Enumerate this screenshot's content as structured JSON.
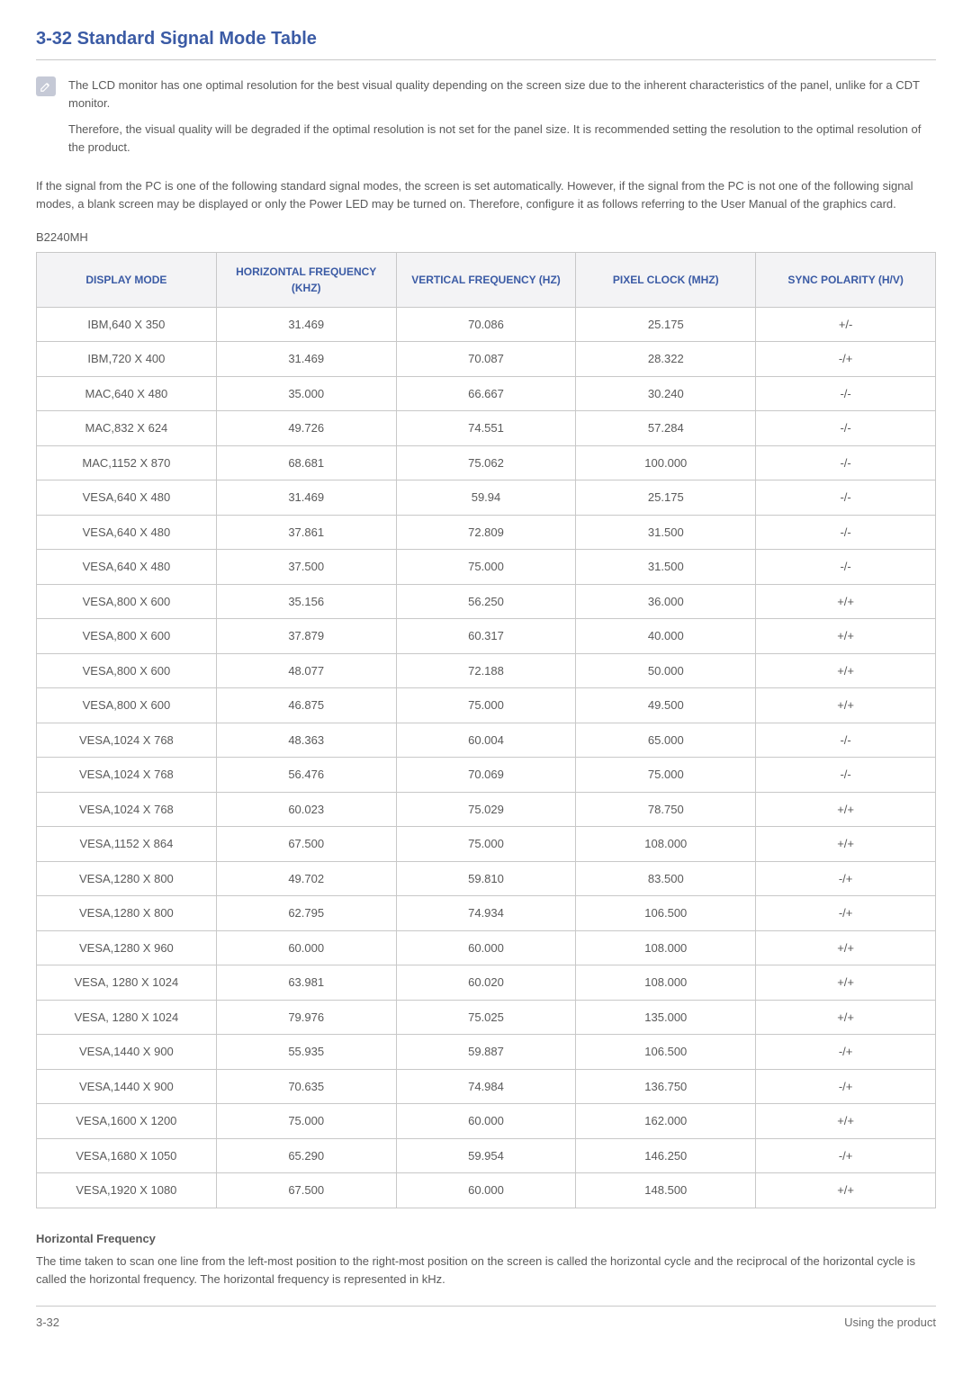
{
  "heading": "3-32  Standard Signal Mode Table",
  "note": {
    "p1": "The LCD monitor has one optimal resolution for the best visual quality depending on the screen size due to the inherent characteristics of the panel, unlike for a CDT monitor.",
    "p2": "Therefore, the visual quality will be degraded if the optimal resolution is not set for the panel size. It is recommended setting the resolution to the optimal resolution of the product."
  },
  "body_para": "If the signal from the PC is one of the following standard signal modes, the screen is set automatically. However, if the signal from the PC is not one of the following signal modes, a blank screen may be displayed or only the Power LED may be turned on. Therefore, configure it as follows referring to the User Manual of the graphics card.",
  "model": "B2240MH",
  "table": {
    "columns": [
      "DISPLAY MODE",
      "HORIZONTAL FREQUENCY (KHZ)",
      "VERTICAL FREQUENCY (HZ)",
      "PIXEL CLOCK (MHZ)",
      "SYNC POLARITY (H/V)"
    ],
    "rows": [
      [
        "IBM,640 X 350",
        "31.469",
        "70.086",
        "25.175",
        "+/-"
      ],
      [
        "IBM,720 X 400",
        "31.469",
        "70.087",
        "28.322",
        "-/+"
      ],
      [
        "MAC,640 X 480",
        "35.000",
        "66.667",
        "30.240",
        "-/-"
      ],
      [
        "MAC,832 X 624",
        "49.726",
        "74.551",
        "57.284",
        "-/-"
      ],
      [
        "MAC,1152 X 870",
        "68.681",
        "75.062",
        "100.000",
        "-/-"
      ],
      [
        "VESA,640 X 480",
        "31.469",
        "59.94",
        "25.175",
        "-/-"
      ],
      [
        "VESA,640 X 480",
        "37.861",
        "72.809",
        "31.500",
        "-/-"
      ],
      [
        "VESA,640 X 480",
        "37.500",
        "75.000",
        "31.500",
        "-/-"
      ],
      [
        "VESA,800 X 600",
        "35.156",
        "56.250",
        "36.000",
        "+/+"
      ],
      [
        "VESA,800 X 600",
        "37.879",
        "60.317",
        "40.000",
        "+/+"
      ],
      [
        "VESA,800 X 600",
        "48.077",
        "72.188",
        "50.000",
        "+/+"
      ],
      [
        "VESA,800 X 600",
        "46.875",
        "75.000",
        "49.500",
        "+/+"
      ],
      [
        "VESA,1024 X 768",
        "48.363",
        "60.004",
        "65.000",
        "-/-"
      ],
      [
        "VESA,1024 X 768",
        "56.476",
        "70.069",
        "75.000",
        "-/-"
      ],
      [
        "VESA,1024 X 768",
        "60.023",
        "75.029",
        "78.750",
        "+/+"
      ],
      [
        "VESA,1152 X 864",
        "67.500",
        "75.000",
        "108.000",
        "+/+"
      ],
      [
        "VESA,1280 X 800",
        "49.702",
        "59.810",
        "83.500",
        "-/+"
      ],
      [
        "VESA,1280 X 800",
        "62.795",
        "74.934",
        "106.500",
        "-/+"
      ],
      [
        "VESA,1280 X 960",
        "60.000",
        "60.000",
        "108.000",
        "+/+"
      ],
      [
        "VESA, 1280 X 1024",
        "63.981",
        "60.020",
        "108.000",
        "+/+"
      ],
      [
        "VESA, 1280 X 1024",
        "79.976",
        "75.025",
        "135.000",
        "+/+"
      ],
      [
        "VESA,1440 X 900",
        "55.935",
        "59.887",
        "106.500",
        "-/+"
      ],
      [
        "VESA,1440 X 900",
        "70.635",
        "74.984",
        "136.750",
        "-/+"
      ],
      [
        "VESA,1600 X 1200",
        "75.000",
        "60.000",
        "162.000",
        "+/+"
      ],
      [
        "VESA,1680 X 1050",
        "65.290",
        "59.954",
        "146.250",
        "-/+"
      ],
      [
        "VESA,1920 X 1080",
        "67.500",
        "60.000",
        "148.500",
        "+/+"
      ]
    ]
  },
  "horiz_heading": "Horizontal Frequency",
  "horiz_text": "The time taken to scan one line from the left-most position to the right-most position on the screen is called the horizontal cycle and the reciprocal of the horizontal cycle is called the horizontal frequency. The horizontal frequency is represented in kHz.",
  "footer": {
    "left": "3-32",
    "right": "Using the product"
  },
  "colors": {
    "accent": "#3b5ba5",
    "rule": "#c8c8c8",
    "header_bg": "#f3f3f5",
    "text": "#5a5a5a",
    "icon_bg": "#c5c9d6"
  }
}
